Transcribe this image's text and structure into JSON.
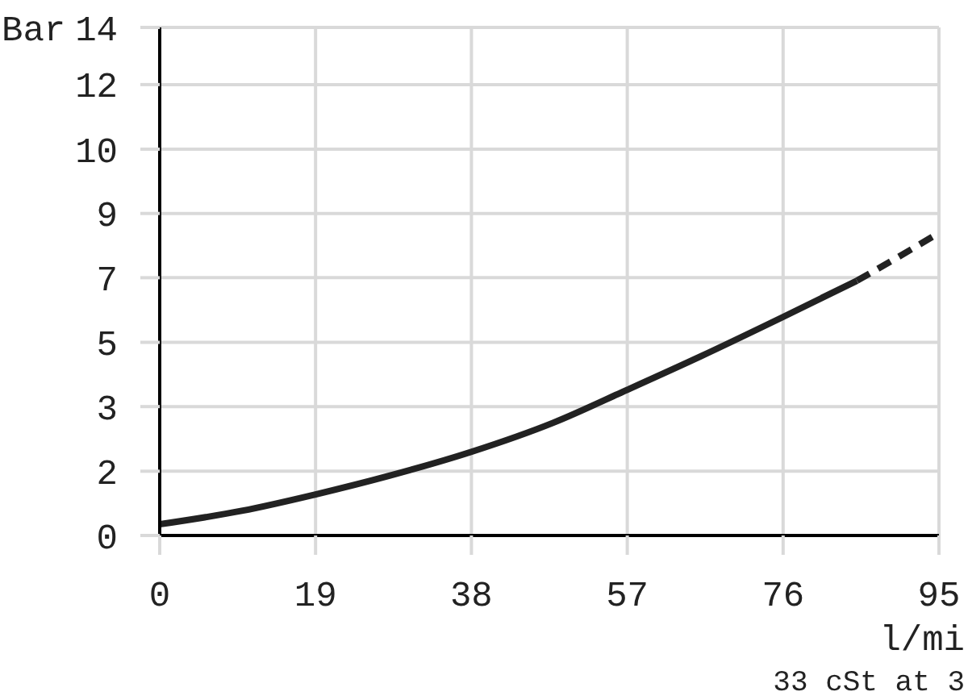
{
  "chart_data": {
    "type": "line",
    "ylabel": "Bar",
    "xlabel": "l/mi",
    "annotations": [
      "33 cSt at 3"
    ],
    "series": [
      {
        "color": "#222222",
        "line_style": "solid",
        "x": [
          0,
          10,
          19,
          28,
          38,
          48,
          57,
          66,
          76,
          85
        ],
        "values": [
          0.3,
          0.66,
          1.1,
          1.6,
          2.24,
          3.02,
          3.9,
          4.8,
          5.85,
          6.82
        ]
      },
      {
        "color": "#222222",
        "line_style": "dashed",
        "x": [
          85,
          90,
          95
        ],
        "values": [
          6.82,
          7.45,
          8.1
        ]
      }
    ],
    "xlim": [
      0,
      95
    ],
    "xticks": [
      0,
      19,
      38,
      57,
      76,
      95
    ],
    "ylim": [
      0,
      13.6
    ],
    "yticks": [
      0,
      {
        "value": 1.72,
        "label": "2"
      },
      {
        "value": 3.45,
        "label": "3"
      },
      {
        "value": 5.17,
        "label": "5"
      },
      {
        "value": 6.9,
        "label": "7"
      },
      {
        "value": 8.62,
        "label": "9"
      },
      {
        "value": 10.34,
        "label": "10"
      },
      {
        "value": 12.07,
        "label": "12"
      },
      {
        "value": 13.6,
        "label": "14"
      }
    ],
    "grid": true,
    "marker": "none"
  }
}
